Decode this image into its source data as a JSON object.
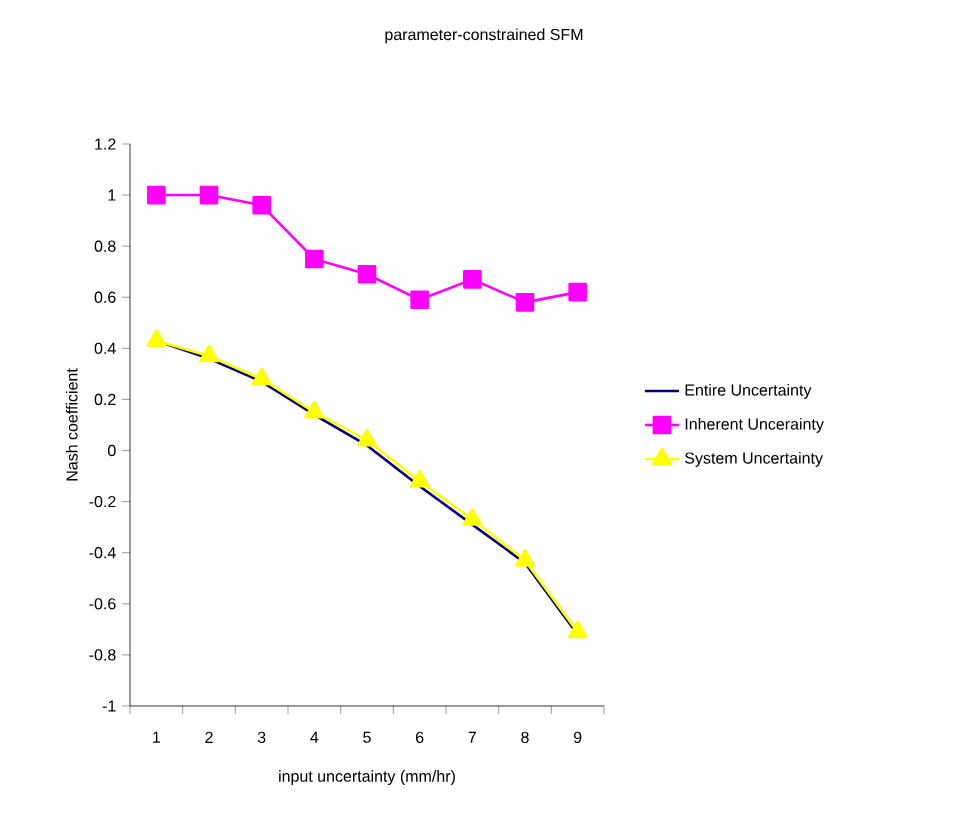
{
  "chart_data": {
    "type": "line",
    "title": "parameter-constrained SFM",
    "xlabel": "input uncertainty (mm/hr)",
    "ylabel": "Nash coefficient",
    "categories": [
      "1",
      "2",
      "3",
      "4",
      "5",
      "6",
      "7",
      "8",
      "9"
    ],
    "series": [
      {
        "name": "Entire Uncertainty",
        "color": "#000080",
        "marker": "none",
        "values": [
          0.43,
          0.36,
          0.27,
          0.14,
          0.02,
          -0.14,
          -0.29,
          -0.44,
          -0.72
        ]
      },
      {
        "name": "Inherent Uncerainty",
        "color": "#ff00ff",
        "marker": "square",
        "values": [
          1.0,
          1.0,
          0.96,
          0.75,
          0.69,
          0.59,
          0.67,
          0.58,
          0.62
        ]
      },
      {
        "name": "System Uncertainty",
        "color": "#ffff00",
        "marker": "triangle",
        "values": [
          0.43,
          0.37,
          0.28,
          0.15,
          0.04,
          -0.12,
          -0.27,
          -0.43,
          -0.71
        ]
      }
    ],
    "ylim": [
      -1,
      1.2
    ],
    "yticks": [
      -1,
      -0.8,
      -0.6,
      -0.4,
      -0.2,
      0,
      0.2,
      0.4,
      0.6,
      0.8,
      1,
      1.2
    ],
    "grid": false,
    "legend": "right"
  }
}
